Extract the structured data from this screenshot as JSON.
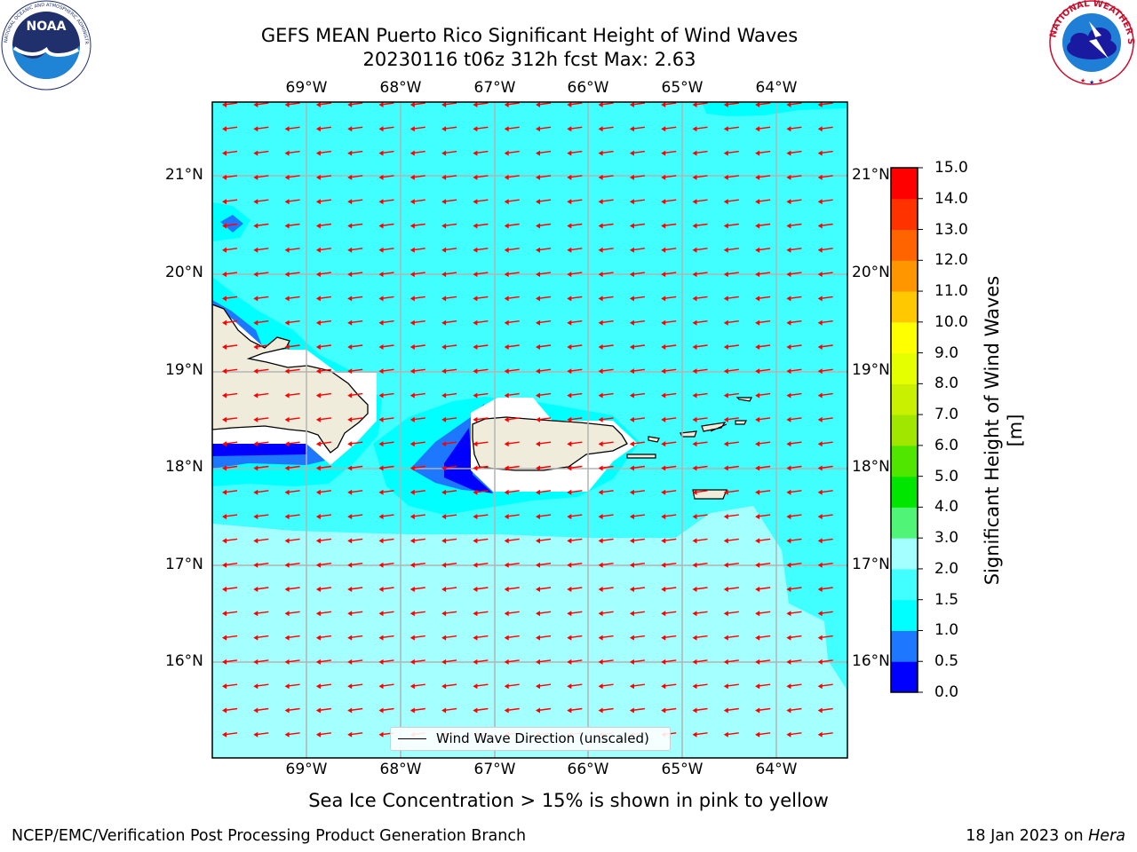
{
  "header": {
    "title_line1": "GEFS MEAN Puerto Rico Significant Height of Wind Waves",
    "title_line2": "20230116 t06z 312h fcst   Max: 2.63"
  },
  "logos": {
    "noaa": {
      "text": "NOAA",
      "ring_text": "NATIONAL OCEANIC AND ATMOSPHERIC ADMINISTRATION · U.S. DEPARTMENT OF COMMERCE"
    },
    "nws": {
      "ring_text": "NATIONAL WEATHER SERVICE"
    }
  },
  "map": {
    "lon_labels": [
      "69°W",
      "68°W",
      "67°W",
      "66°W",
      "65°W",
      "64°W"
    ],
    "lat_labels": [
      "21°N",
      "20°N",
      "19°N",
      "18°N",
      "17°N",
      "16°N"
    ],
    "legend_label": "Wind Wave Direction (unscaled)",
    "arrow_color": "#ff0000",
    "land_color": "#efecdc"
  },
  "colorbar": {
    "label": "Significant Height of Wind Waves [m]",
    "ticks": [
      "15.0",
      "14.0",
      "13.0",
      "12.0",
      "11.0",
      "10.0",
      "9.0",
      "8.0",
      "7.0",
      "6.0",
      "5.0",
      "4.0",
      "3.0",
      "2.0",
      "1.5",
      "1.0",
      "0.5",
      "0.0"
    ],
    "colors": [
      "#0000ff",
      "#1e78ff",
      "#00ffff",
      "#41ffff",
      "#a4ffff",
      "#50f578",
      "#00e600",
      "#50e600",
      "#a0e600",
      "#c8f000",
      "#e6ff00",
      "#ffff00",
      "#ffc800",
      "#ff9600",
      "#ff6400",
      "#ff3200",
      "#ff0000"
    ]
  },
  "caption": "Sea Ice Concentration > 15% is shown in pink to yellow",
  "footer": {
    "left": "NCEP/EMC/Verification Post Processing Product Generation Branch",
    "right_prefix": "18 Jan 2023 on ",
    "right_host": "Hera"
  }
}
